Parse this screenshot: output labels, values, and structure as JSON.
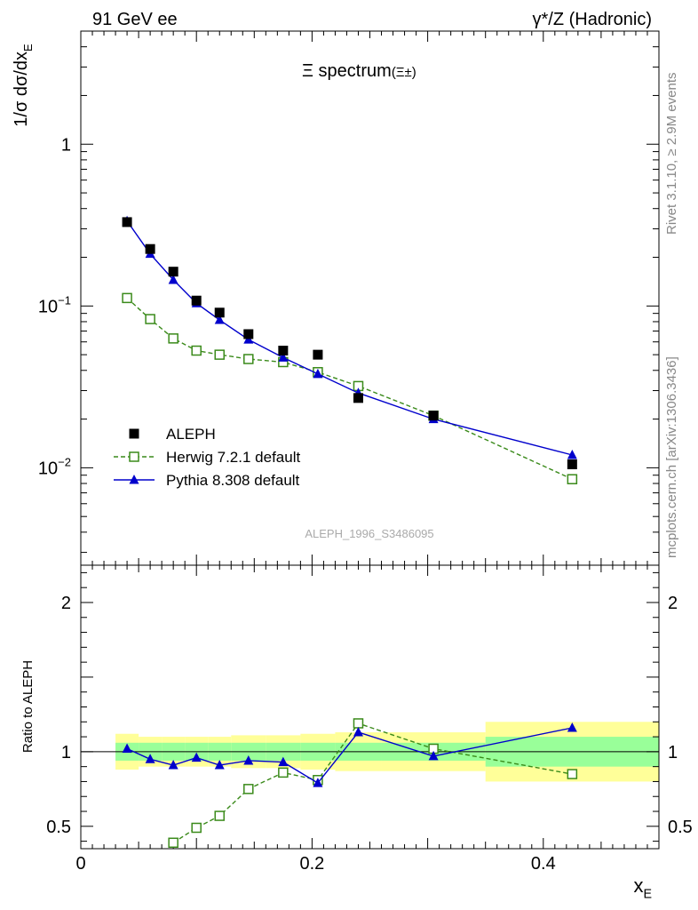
{
  "header": {
    "left": "91 GeV ee",
    "right": "γ*/Z (Hadronic)"
  },
  "side_labels": {
    "rivet": "Rivet 3.1.10, ≥ 2.9M events",
    "mcplots": "mcplots.cern.ch [arXiv:1306.3436]"
  },
  "colors": {
    "data": "#000000",
    "herwig": "#3a8a1a",
    "pythia": "#0000cc",
    "band_inner": "#99ff99",
    "band_outer": "#ffff99"
  },
  "chart_data": [
    {
      "type": "scatter",
      "title": "Ξ spectrum",
      "title_sup": "(Ξ±)",
      "ylabel": "1/σ dσ/dx",
      "ylabel_sub": "E",
      "yscale": "log",
      "xlim": [
        0,
        0.5
      ],
      "ylim": [
        0.0025,
        5
      ],
      "y_ticks": [
        {
          "value": 1,
          "label": "1"
        },
        {
          "value": 0.1,
          "label": "10",
          "sup": "−1"
        },
        {
          "value": 0.01,
          "label": "10",
          "sup": "−2"
        }
      ],
      "watermark": "ALEPH_1996_S3486095",
      "legend": {
        "position": "bottom-left",
        "entries": [
          {
            "key": "data",
            "label": "ALEPH"
          },
          {
            "key": "herwig",
            "label": "Herwig 7.2.1 default"
          },
          {
            "key": "pythia",
            "label": "Pythia 8.308 default"
          }
        ]
      },
      "series": [
        {
          "key": "data",
          "name": "ALEPH",
          "marker": "square-filled",
          "x": [
            0.04,
            0.06,
            0.08,
            0.1,
            0.12,
            0.145,
            0.175,
            0.205,
            0.24,
            0.305,
            0.425
          ],
          "y": [
            0.33,
            0.225,
            0.163,
            0.108,
            0.091,
            0.067,
            0.053,
            0.05,
            0.027,
            0.021,
            0.0105
          ]
        },
        {
          "key": "herwig",
          "name": "Herwig 7.2.1 default",
          "marker": "square-open",
          "line": "dashed",
          "x": [
            0.04,
            0.06,
            0.08,
            0.1,
            0.12,
            0.145,
            0.175,
            0.205,
            0.24,
            0.305,
            0.425
          ],
          "y": [
            0.112,
            0.083,
            0.063,
            0.053,
            0.05,
            0.047,
            0.045,
            0.039,
            0.032,
            0.021,
            0.0085
          ]
        },
        {
          "key": "pythia",
          "name": "Pythia 8.308 default",
          "marker": "triangle-filled",
          "line": "solid",
          "x": [
            0.04,
            0.06,
            0.08,
            0.1,
            0.12,
            0.145,
            0.175,
            0.205,
            0.24,
            0.305,
            0.425
          ],
          "y": [
            0.335,
            0.21,
            0.145,
            0.104,
            0.082,
            0.062,
            0.048,
            0.038,
            0.029,
            0.02,
            0.012
          ]
        }
      ]
    },
    {
      "type": "line",
      "ylabel": "Ratio to ALEPH",
      "xlabel": "x",
      "xlabel_sub": "E",
      "xlim": [
        0,
        0.5
      ],
      "ylim": [
        0.35,
        2.25
      ],
      "x_ticks": [
        {
          "value": 0,
          "label": "0"
        },
        {
          "value": 0.2,
          "label": "0.2"
        },
        {
          "value": 0.4,
          "label": "0.4"
        }
      ],
      "y_ticks": [
        {
          "value": 0.5,
          "label": "0.5"
        },
        {
          "value": 1,
          "label": "1"
        },
        {
          "value": 2,
          "label": "2"
        }
      ],
      "bands": [
        {
          "x0": 0.03,
          "x1": 0.05,
          "inner": [
            0.94,
            1.06
          ],
          "outer": [
            0.88,
            1.12
          ]
        },
        {
          "x0": 0.05,
          "x1": 0.07,
          "inner": [
            0.94,
            1.06
          ],
          "outer": [
            0.9,
            1.1
          ]
        },
        {
          "x0": 0.07,
          "x1": 0.09,
          "inner": [
            0.94,
            1.06
          ],
          "outer": [
            0.9,
            1.1
          ]
        },
        {
          "x0": 0.09,
          "x1": 0.11,
          "inner": [
            0.94,
            1.06
          ],
          "outer": [
            0.9,
            1.1
          ]
        },
        {
          "x0": 0.11,
          "x1": 0.13,
          "inner": [
            0.94,
            1.06
          ],
          "outer": [
            0.9,
            1.1
          ]
        },
        {
          "x0": 0.13,
          "x1": 0.16,
          "inner": [
            0.94,
            1.06
          ],
          "outer": [
            0.89,
            1.11
          ]
        },
        {
          "x0": 0.16,
          "x1": 0.19,
          "inner": [
            0.94,
            1.06
          ],
          "outer": [
            0.89,
            1.11
          ]
        },
        {
          "x0": 0.19,
          "x1": 0.22,
          "inner": [
            0.94,
            1.06
          ],
          "outer": [
            0.88,
            1.12
          ]
        },
        {
          "x0": 0.22,
          "x1": 0.26,
          "inner": [
            0.94,
            1.06
          ],
          "outer": [
            0.87,
            1.13
          ]
        },
        {
          "x0": 0.26,
          "x1": 0.35,
          "inner": [
            0.94,
            1.06
          ],
          "outer": [
            0.87,
            1.13
          ]
        },
        {
          "x0": 0.35,
          "x1": 0.5,
          "inner": [
            0.9,
            1.1
          ],
          "outer": [
            0.8,
            1.2
          ]
        }
      ],
      "series": [
        {
          "key": "herwig",
          "name": "Herwig 7.2.1 default",
          "marker": "square-open",
          "line": "dashed",
          "x": [
            0.08,
            0.1,
            0.12,
            0.145,
            0.175,
            0.205,
            0.24,
            0.305,
            0.425
          ],
          "y": [
            0.39,
            0.49,
            0.57,
            0.75,
            0.86,
            0.81,
            1.19,
            1.02,
            0.85
          ]
        },
        {
          "key": "pythia",
          "name": "Pythia 8.308 default",
          "marker": "triangle-filled",
          "line": "solid",
          "x": [
            0.04,
            0.06,
            0.08,
            0.1,
            0.12,
            0.145,
            0.175,
            0.205,
            0.24,
            0.305,
            0.425
          ],
          "y": [
            1.02,
            0.95,
            0.91,
            0.96,
            0.91,
            0.94,
            0.93,
            0.79,
            1.13,
            0.97,
            1.16
          ]
        }
      ]
    }
  ]
}
